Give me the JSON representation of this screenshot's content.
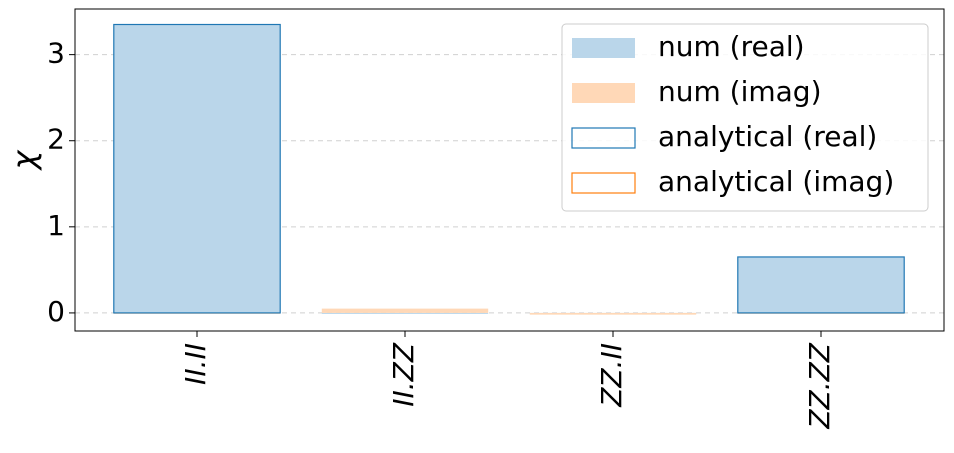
{
  "chart_data": {
    "type": "bar",
    "ylabel": "χ",
    "categories": [
      "II.II",
      "II.ZZ",
      "ZZ.II",
      "ZZ.ZZ"
    ],
    "series": [
      {
        "name": "num (real)",
        "color": "#bad6ea",
        "style": "filled",
        "values": [
          3.35,
          0,
          0,
          0.65
        ]
      },
      {
        "name": "num (imag)",
        "color": "#ffd8b7",
        "style": "filled",
        "values": [
          0,
          0.05,
          -0.02,
          0
        ]
      },
      {
        "name": "analytical (real)",
        "color": "#1f77b4",
        "style": "outline",
        "values": [
          3.35,
          0,
          0,
          0.65
        ]
      },
      {
        "name": "analytical (imag)",
        "color": "#ff7f0e",
        "style": "outline",
        "values": [
          0,
          0,
          0,
          0
        ]
      }
    ],
    "ylim": [
      -0.21,
      3.53
    ],
    "yticks": [
      0,
      1,
      2,
      3
    ],
    "grid": true,
    "legend": "upper right"
  }
}
